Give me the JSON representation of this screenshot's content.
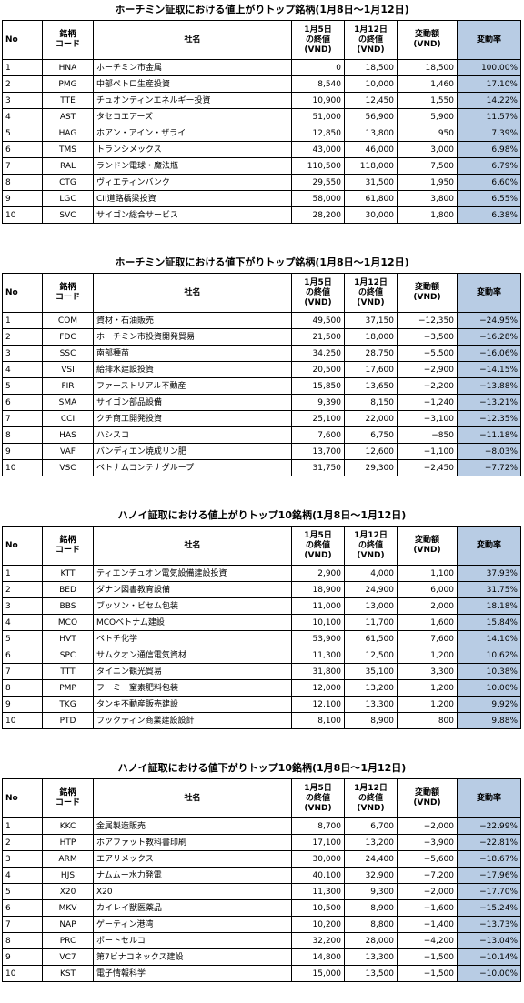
{
  "headers": {
    "no": "No",
    "code": "銘柄\nコード",
    "name": "社名",
    "close_start": "1月5日\nの終値\n(VND)",
    "close_end": "1月12日\nの終値\n(VND)",
    "change": "変動額\n(VND)",
    "pct": "変動率"
  },
  "sections": [
    {
      "title": "ホーチミン証取における値上がりトップ銘柄(1月8日〜1月12日)",
      "rows": [
        {
          "no": "1",
          "code": "HNA",
          "name": "ホーチミン市金属",
          "start": "0",
          "end": "18,500",
          "change": "18,500",
          "pct": "100.00%"
        },
        {
          "no": "2",
          "code": "PMG",
          "name": "中部ペトロ生産投資",
          "start": "8,540",
          "end": "10,000",
          "change": "1,460",
          "pct": "17.10%"
        },
        {
          "no": "3",
          "code": "TTE",
          "name": "チュオンティンエネルギー投資",
          "start": "10,900",
          "end": "12,450",
          "change": "1,550",
          "pct": "14.22%"
        },
        {
          "no": "4",
          "code": "AST",
          "name": "タセコエアーズ",
          "start": "51,000",
          "end": "56,900",
          "change": "5,900",
          "pct": "11.57%"
        },
        {
          "no": "5",
          "code": "HAG",
          "name": "ホアン・アイン・ザライ",
          "start": "12,850",
          "end": "13,800",
          "change": "950",
          "pct": "7.39%"
        },
        {
          "no": "6",
          "code": "TMS",
          "name": "トランシメックス",
          "start": "43,000",
          "end": "46,000",
          "change": "3,000",
          "pct": "6.98%"
        },
        {
          "no": "7",
          "code": "RAL",
          "name": "ランドン電球・魔法瓶",
          "start": "110,500",
          "end": "118,000",
          "change": "7,500",
          "pct": "6.79%"
        },
        {
          "no": "8",
          "code": "CTG",
          "name": "ヴィエティンバンク",
          "start": "29,550",
          "end": "31,500",
          "change": "1,950",
          "pct": "6.60%"
        },
        {
          "no": "9",
          "code": "LGC",
          "name": "CII道路橋梁投資",
          "start": "58,000",
          "end": "61,800",
          "change": "3,800",
          "pct": "6.55%"
        },
        {
          "no": "10",
          "code": "SVC",
          "name": "サイゴン総合サービス",
          "start": "28,200",
          "end": "30,000",
          "change": "1,800",
          "pct": "6.38%"
        }
      ]
    },
    {
      "title": "ホーチミン証取における値下がりトップ銘柄(1月8日〜1月12日)",
      "rows": [
        {
          "no": "1",
          "code": "COM",
          "name": "資材・石油販売",
          "start": "49,500",
          "end": "37,150",
          "change": "−12,350",
          "pct": "−24.95%"
        },
        {
          "no": "2",
          "code": "FDC",
          "name": "ホーチミン市投資開発貿易",
          "start": "21,500",
          "end": "18,000",
          "change": "−3,500",
          "pct": "−16.28%"
        },
        {
          "no": "3",
          "code": "SSC",
          "name": "南部種苗",
          "start": "34,250",
          "end": "28,750",
          "change": "−5,500",
          "pct": "−16.06%"
        },
        {
          "no": "4",
          "code": "VSI",
          "name": "給排水建設投資",
          "start": "20,500",
          "end": "17,600",
          "change": "−2,900",
          "pct": "−14.15%"
        },
        {
          "no": "5",
          "code": "FIR",
          "name": "ファーストリアル不動産",
          "start": "15,850",
          "end": "13,650",
          "change": "−2,200",
          "pct": "−13.88%"
        },
        {
          "no": "6",
          "code": "SMA",
          "name": "サイゴン部品設備",
          "start": "9,390",
          "end": "8,150",
          "change": "−1,240",
          "pct": "−13.21%"
        },
        {
          "no": "7",
          "code": "CCI",
          "name": "クチ商工開発投資",
          "start": "25,100",
          "end": "22,000",
          "change": "−3,100",
          "pct": "−12.35%"
        },
        {
          "no": "8",
          "code": "HAS",
          "name": "ハシスコ",
          "start": "7,600",
          "end": "6,750",
          "change": "−850",
          "pct": "−11.18%"
        },
        {
          "no": "9",
          "code": "VAF",
          "name": "バンディエン焼成リン肥",
          "start": "13,700",
          "end": "12,600",
          "change": "−1,100",
          "pct": "−8.03%"
        },
        {
          "no": "10",
          "code": "VSC",
          "name": "ベトナムコンテナグループ",
          "start": "31,750",
          "end": "29,300",
          "change": "−2,450",
          "pct": "−7.72%"
        }
      ]
    },
    {
      "title": "ハノイ証取における値上がりトップ10銘柄(1月8日〜1月12日)",
      "rows": [
        {
          "no": "1",
          "code": "KTT",
          "name": "ティエンチュオン電気設備建設投資",
          "start": "2,900",
          "end": "4,000",
          "change": "1,100",
          "pct": "37.93%"
        },
        {
          "no": "2",
          "code": "BED",
          "name": "ダナン図書教育設備",
          "start": "18,900",
          "end": "24,900",
          "change": "6,000",
          "pct": "31.75%"
        },
        {
          "no": "3",
          "code": "BBS",
          "name": "ブッソン・ビセム包装",
          "start": "11,000",
          "end": "13,000",
          "change": "2,000",
          "pct": "18.18%"
        },
        {
          "no": "4",
          "code": "MCO",
          "name": "MCOベトナム建設",
          "start": "10,100",
          "end": "11,700",
          "change": "1,600",
          "pct": "15.84%"
        },
        {
          "no": "5",
          "code": "HVT",
          "name": "ベトチ化学",
          "start": "53,900",
          "end": "61,500",
          "change": "7,600",
          "pct": "14.10%"
        },
        {
          "no": "6",
          "code": "SPC",
          "name": "サムクオン通信電気資材",
          "start": "11,300",
          "end": "12,500",
          "change": "1,200",
          "pct": "10.62%"
        },
        {
          "no": "7",
          "code": "TTT",
          "name": "タイニン観光貿易",
          "start": "31,800",
          "end": "35,100",
          "change": "3,300",
          "pct": "10.38%"
        },
        {
          "no": "8",
          "code": "PMP",
          "name": "フーミー窒素肥料包装",
          "start": "12,000",
          "end": "13,200",
          "change": "1,200",
          "pct": "10.00%"
        },
        {
          "no": "9",
          "code": "TKG",
          "name": "タンキ不動産販売建設",
          "start": "12,100",
          "end": "13,300",
          "change": "1,200",
          "pct": "9.92%"
        },
        {
          "no": "10",
          "code": "PTD",
          "name": "フックティン商業建設設計",
          "start": "8,100",
          "end": "8,900",
          "change": "800",
          "pct": "9.88%"
        }
      ]
    },
    {
      "title": "ハノイ証取における値下がりトップ10銘柄(1月8日〜1月12日)",
      "rows": [
        {
          "no": "1",
          "code": "KKC",
          "name": "金属製造販売",
          "start": "8,700",
          "end": "6,700",
          "change": "−2,000",
          "pct": "−22.99%"
        },
        {
          "no": "2",
          "code": "HTP",
          "name": "ホアファット教科書印刷",
          "start": "17,100",
          "end": "13,200",
          "change": "−3,900",
          "pct": "−22.81%"
        },
        {
          "no": "3",
          "code": "ARM",
          "name": "エアリメックス",
          "start": "30,000",
          "end": "24,400",
          "change": "−5,600",
          "pct": "−18.67%"
        },
        {
          "no": "4",
          "code": "HJS",
          "name": "ナムムー水力発電",
          "start": "40,100",
          "end": "32,900",
          "change": "−7,200",
          "pct": "−17.96%"
        },
        {
          "no": "5",
          "code": "X20",
          "name": "X20",
          "start": "11,300",
          "end": "9,300",
          "change": "−2,000",
          "pct": "−17.70%"
        },
        {
          "no": "6",
          "code": "MKV",
          "name": "カイレイ獣医薬品",
          "start": "10,500",
          "end": "8,900",
          "change": "−1,600",
          "pct": "−15.24%"
        },
        {
          "no": "7",
          "code": "NAP",
          "name": "ゲーティン港湾",
          "start": "10,200",
          "end": "8,800",
          "change": "−1,400",
          "pct": "−13.73%"
        },
        {
          "no": "8",
          "code": "PRC",
          "name": "ポートセルコ",
          "start": "32,200",
          "end": "28,000",
          "change": "−4,200",
          "pct": "−13.04%"
        },
        {
          "no": "9",
          "code": "VC7",
          "name": "第7ビナコネックス建設",
          "start": "14,800",
          "end": "13,300",
          "change": "−1,500",
          "pct": "−10.14%"
        },
        {
          "no": "10",
          "code": "KST",
          "name": "電子情報科学",
          "start": "15,000",
          "end": "13,500",
          "change": "−1,500",
          "pct": "−10.00%"
        }
      ]
    }
  ]
}
